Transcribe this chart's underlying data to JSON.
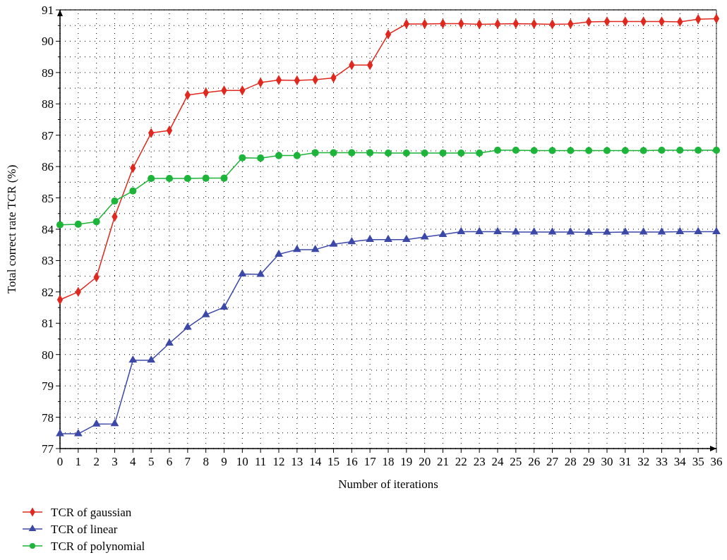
{
  "chart_data": {
    "type": "line",
    "xlabel": "Number of iterations",
    "ylabel": "Total correct rate TCR (%)",
    "x": [
      0,
      1,
      2,
      3,
      4,
      5,
      6,
      7,
      8,
      9,
      10,
      11,
      12,
      13,
      14,
      15,
      16,
      17,
      18,
      19,
      20,
      21,
      22,
      23,
      24,
      25,
      26,
      27,
      28,
      29,
      30,
      31,
      32,
      33,
      34,
      35,
      36
    ],
    "xlim": [
      0,
      36
    ],
    "xticks": [
      0,
      1,
      2,
      3,
      4,
      5,
      6,
      7,
      8,
      9,
      10,
      11,
      12,
      13,
      14,
      15,
      16,
      17,
      18,
      19,
      20,
      21,
      22,
      23,
      24,
      25,
      26,
      27,
      28,
      29,
      30,
      31,
      32,
      33,
      34,
      35,
      36
    ],
    "ylim": [
      77,
      91
    ],
    "yticks": [
      77,
      {
        "value": 77.5,
        "label": null
      },
      78,
      {
        "value": 78.5,
        "label": null
      },
      79,
      {
        "value": 79.5,
        "label": null
      },
      80,
      {
        "value": 80.5,
        "label": null
      },
      81,
      {
        "value": 81.5,
        "label": null
      },
      82,
      {
        "value": 82.5,
        "label": null
      },
      83,
      {
        "value": 83.5,
        "label": null
      },
      84,
      {
        "value": 84.5,
        "label": null
      },
      85,
      {
        "value": 85.5,
        "label": null
      },
      86,
      {
        "value": 86.5,
        "label": null
      },
      87,
      {
        "value": 87.5,
        "label": null
      },
      88,
      {
        "value": 88.5,
        "label": null
      },
      89,
      {
        "value": 89.5,
        "label": null
      },
      90,
      {
        "value": 90.5,
        "label": null
      },
      91
    ],
    "grid": true,
    "legend": "bottom left",
    "line_style": "solid",
    "series": [
      {
        "name": "TCR of gaussian",
        "color": "#e0281e",
        "marker": "diamond",
        "values": [
          81.75,
          82.0,
          82.47,
          84.4,
          85.95,
          87.07,
          87.15,
          88.28,
          88.36,
          88.43,
          88.43,
          88.68,
          88.76,
          88.75,
          88.77,
          88.83,
          89.24,
          89.24,
          90.22,
          90.55,
          90.55,
          90.56,
          90.56,
          90.54,
          90.55,
          90.56,
          90.55,
          90.54,
          90.55,
          90.62,
          90.63,
          90.63,
          90.63,
          90.63,
          90.62,
          90.7,
          90.72
        ]
      },
      {
        "name": "TCR of linear",
        "color": "#3c48a8",
        "marker": "triangle",
        "values": [
          77.47,
          77.47,
          77.78,
          77.79,
          79.82,
          79.82,
          80.36,
          80.87,
          81.27,
          81.51,
          82.57,
          82.56,
          83.2,
          83.35,
          83.35,
          83.52,
          83.6,
          83.67,
          83.67,
          83.67,
          83.75,
          83.83,
          83.92,
          83.92,
          83.92,
          83.91,
          83.91,
          83.91,
          83.91,
          83.9,
          83.9,
          83.91,
          83.91,
          83.91,
          83.92,
          83.92,
          83.92
        ]
      },
      {
        "name": "TCR of polynomial",
        "color": "#1db43a",
        "marker": "circle",
        "values": [
          84.14,
          84.16,
          84.24,
          84.9,
          85.22,
          85.62,
          85.62,
          85.62,
          85.63,
          85.63,
          86.28,
          86.27,
          86.35,
          86.35,
          86.44,
          86.44,
          86.44,
          86.44,
          86.43,
          86.43,
          86.43,
          86.43,
          86.43,
          86.43,
          86.52,
          86.52,
          86.51,
          86.51,
          86.51,
          86.51,
          86.51,
          86.51,
          86.51,
          86.52,
          86.52,
          86.52,
          86.52
        ]
      }
    ]
  }
}
